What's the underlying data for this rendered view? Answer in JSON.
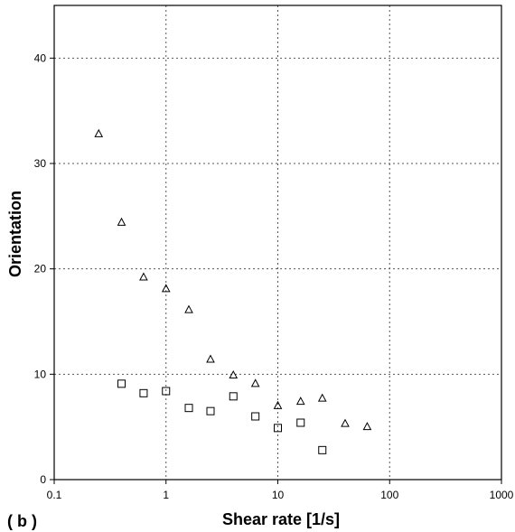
{
  "panel_label": "( b )",
  "chart_data": {
    "type": "scatter",
    "xlabel": "Shear rate [1/s]",
    "ylabel": "Orientation",
    "xscale": "log",
    "xlim": [
      0.1,
      1000
    ],
    "ylim": [
      0,
      45
    ],
    "grid": true,
    "x_ticks": [
      {
        "value": 0.1,
        "label": "0.1"
      },
      {
        "value": 1,
        "label": "1"
      },
      {
        "value": 10,
        "label": "10"
      },
      {
        "value": 100,
        "label": "100"
      },
      {
        "value": 1000,
        "label": "1000"
      }
    ],
    "y_ticks": [
      {
        "value": 0,
        "label": "0"
      },
      {
        "value": 10,
        "label": "10"
      },
      {
        "value": 20,
        "label": "20"
      },
      {
        "value": 30,
        "label": "30"
      },
      {
        "value": 40,
        "label": "40"
      }
    ],
    "series": [
      {
        "marker": "triangle",
        "points": [
          {
            "x": 0.25,
            "y": 32.8
          },
          {
            "x": 0.4,
            "y": 24.4
          },
          {
            "x": 0.63,
            "y": 19.2
          },
          {
            "x": 1.0,
            "y": 18.1
          },
          {
            "x": 1.6,
            "y": 16.1
          },
          {
            "x": 2.5,
            "y": 11.4
          },
          {
            "x": 4.0,
            "y": 9.9
          },
          {
            "x": 6.3,
            "y": 9.1
          },
          {
            "x": 10,
            "y": 7.0
          },
          {
            "x": 16,
            "y": 7.4
          },
          {
            "x": 25,
            "y": 7.7
          },
          {
            "x": 40,
            "y": 5.3
          },
          {
            "x": 63,
            "y": 5.0
          }
        ]
      },
      {
        "marker": "square",
        "points": [
          {
            "x": 0.4,
            "y": 9.1
          },
          {
            "x": 0.63,
            "y": 8.2
          },
          {
            "x": 1.0,
            "y": 8.4
          },
          {
            "x": 1.6,
            "y": 6.8
          },
          {
            "x": 2.5,
            "y": 6.5
          },
          {
            "x": 4.0,
            "y": 7.9
          },
          {
            "x": 6.3,
            "y": 6.0
          },
          {
            "x": 10,
            "y": 4.9
          },
          {
            "x": 16,
            "y": 5.4
          },
          {
            "x": 25,
            "y": 2.8
          }
        ]
      }
    ]
  }
}
